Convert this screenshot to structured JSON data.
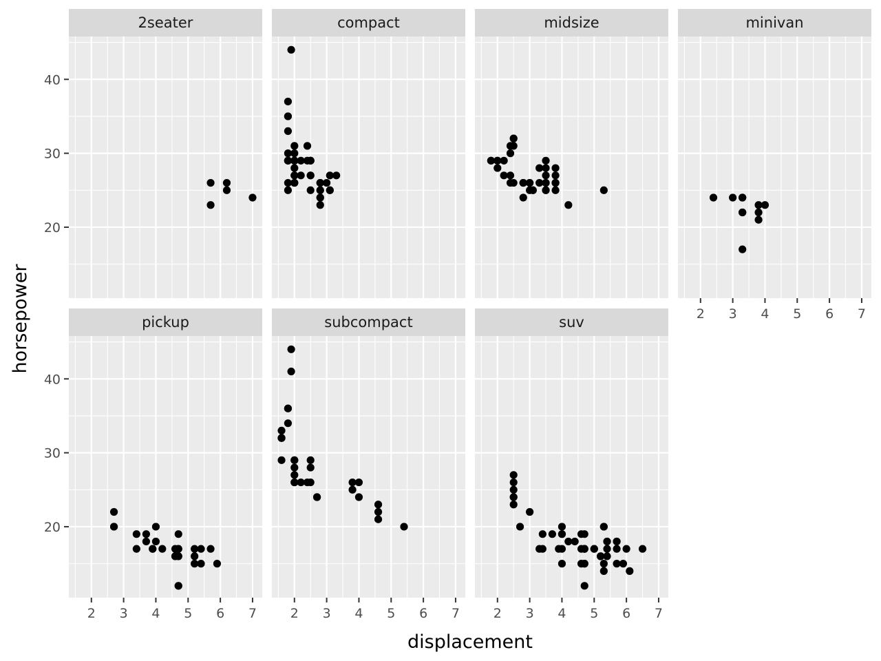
{
  "chart_data": {
    "type": "scatter",
    "facet_by": "class",
    "xlabel": "displacement",
    "ylabel": "horsepower",
    "xlim": [
      1.3,
      7.3
    ],
    "ylim": [
      10.4,
      45.8
    ],
    "x_ticks": [
      2,
      3,
      4,
      5,
      6,
      7
    ],
    "y_ticks": [
      20,
      30,
      40
    ],
    "grid": true,
    "point_color": "#000000",
    "panel_background": "#ebebeb",
    "strip_background": "#d9d9d9",
    "facets": [
      {
        "label": "2seater",
        "points": [
          [
            5.7,
            26
          ],
          [
            5.7,
            23
          ],
          [
            6.2,
            26
          ],
          [
            6.2,
            25
          ],
          [
            7.0,
            24
          ]
        ]
      },
      {
        "label": "compact",
        "points": [
          [
            1.8,
            29
          ],
          [
            1.8,
            29
          ],
          [
            2.0,
            31
          ],
          [
            2.0,
            30
          ],
          [
            2.8,
            26
          ],
          [
            2.8,
            26
          ],
          [
            3.1,
            27
          ],
          [
            1.8,
            26
          ],
          [
            1.8,
            25
          ],
          [
            2.0,
            28
          ],
          [
            2.0,
            27
          ],
          [
            2.8,
            25
          ],
          [
            2.8,
            25
          ],
          [
            3.1,
            25
          ],
          [
            3.1,
            25
          ],
          [
            2.2,
            27
          ],
          [
            2.2,
            29
          ],
          [
            2.4,
            31
          ],
          [
            2.4,
            29
          ],
          [
            3.0,
            26
          ],
          [
            2.0,
            29
          ],
          [
            2.0,
            29
          ],
          [
            2.0,
            27
          ],
          [
            2.0,
            26
          ],
          [
            2.5,
            27
          ],
          [
            2.5,
            25
          ],
          [
            2.5,
            29
          ],
          [
            2.5,
            29
          ],
          [
            2.8,
            24
          ],
          [
            2.8,
            23
          ],
          [
            1.9,
            44
          ],
          [
            2.0,
            29
          ],
          [
            2.0,
            26
          ],
          [
            2.0,
            29
          ],
          [
            2.0,
            29
          ],
          [
            2.5,
            29
          ],
          [
            2.5,
            27
          ],
          [
            2.8,
            24
          ],
          [
            3.3,
            27
          ],
          [
            1.8,
            33
          ],
          [
            1.8,
            35
          ],
          [
            1.8,
            37
          ],
          [
            1.8,
            35
          ],
          [
            1.8,
            29
          ],
          [
            2.0,
            26
          ],
          [
            1.8,
            30
          ]
        ]
      },
      {
        "label": "midsize",
        "points": [
          [
            2.8,
            24
          ],
          [
            3.1,
            25
          ],
          [
            4.2,
            23
          ],
          [
            2.4,
            27
          ],
          [
            2.4,
            30
          ],
          [
            3.3,
            26
          ],
          [
            3.5,
            29
          ],
          [
            3.5,
            26
          ],
          [
            3.8,
            26
          ],
          [
            3.8,
            25
          ],
          [
            5.3,
            25
          ],
          [
            1.8,
            29
          ],
          [
            1.8,
            29
          ],
          [
            2.0,
            28
          ],
          [
            2.0,
            29
          ],
          [
            2.8,
            26
          ],
          [
            2.8,
            26
          ],
          [
            3.1,
            25
          ],
          [
            2.4,
            26
          ],
          [
            2.5,
            26
          ],
          [
            3.5,
            25
          ],
          [
            2.0,
            29
          ],
          [
            2.2,
            29
          ],
          [
            2.2,
            27
          ],
          [
            3.0,
            26
          ],
          [
            3.5,
            25
          ],
          [
            2.5,
            31
          ],
          [
            2.5,
            32
          ],
          [
            3.0,
            26
          ],
          [
            3.3,
            28
          ],
          [
            3.5,
            28
          ],
          [
            3.8,
            27
          ],
          [
            3.8,
            26
          ],
          [
            3.8,
            28
          ],
          [
            3.5,
            27
          ],
          [
            2.4,
            31
          ],
          [
            2.5,
            32
          ],
          [
            2.8,
            26
          ],
          [
            3.0,
            25
          ],
          [
            3.5,
            26
          ],
          [
            3.8,
            26
          ]
        ]
      },
      {
        "label": "minivan",
        "points": [
          [
            2.4,
            24
          ],
          [
            3.0,
            24
          ],
          [
            3.3,
            22
          ],
          [
            3.3,
            22
          ],
          [
            3.3,
            24
          ],
          [
            3.3,
            24
          ],
          [
            3.3,
            17
          ],
          [
            3.8,
            22
          ],
          [
            3.8,
            21
          ],
          [
            3.8,
            23
          ],
          [
            4.0,
            23
          ]
        ]
      },
      {
        "label": "pickup",
        "points": [
          [
            2.7,
            20
          ],
          [
            2.7,
            20
          ],
          [
            2.7,
            22
          ],
          [
            3.4,
            17
          ],
          [
            3.4,
            19
          ],
          [
            3.7,
            18
          ],
          [
            3.7,
            19
          ],
          [
            3.9,
            17
          ],
          [
            3.9,
            17
          ],
          [
            4.0,
            20
          ],
          [
            4.0,
            18
          ],
          [
            4.2,
            17
          ],
          [
            4.7,
            17
          ],
          [
            4.7,
            12
          ],
          [
            4.7,
            16
          ],
          [
            4.7,
            19
          ],
          [
            4.7,
            16
          ],
          [
            4.7,
            17
          ],
          [
            4.7,
            12
          ],
          [
            5.2,
            17
          ],
          [
            5.2,
            15
          ],
          [
            5.2,
            16
          ],
          [
            5.4,
            17
          ],
          [
            5.4,
            15
          ],
          [
            5.7,
            17
          ],
          [
            5.9,
            15
          ],
          [
            4.6,
            16
          ],
          [
            4.6,
            17
          ],
          [
            4.6,
            16
          ]
        ]
      },
      {
        "label": "subcompact",
        "points": [
          [
            1.6,
            33
          ],
          [
            1.6,
            32
          ],
          [
            1.6,
            32
          ],
          [
            1.6,
            29
          ],
          [
            1.6,
            32
          ],
          [
            1.8,
            34
          ],
          [
            1.8,
            36
          ],
          [
            1.8,
            36
          ],
          [
            2.0,
            29
          ],
          [
            2.0,
            26
          ],
          [
            2.0,
            27
          ],
          [
            2.0,
            28
          ],
          [
            2.0,
            26
          ],
          [
            2.0,
            29
          ],
          [
            2.4,
            26
          ],
          [
            2.5,
            26
          ],
          [
            2.5,
            28
          ],
          [
            2.5,
            29
          ],
          [
            2.7,
            24
          ],
          [
            2.7,
            24
          ],
          [
            3.8,
            26
          ],
          [
            3.8,
            25
          ],
          [
            4.0,
            26
          ],
          [
            4.0,
            24
          ],
          [
            4.6,
            21
          ],
          [
            4.6,
            22
          ],
          [
            4.6,
            23
          ],
          [
            5.4,
            20
          ],
          [
            1.9,
            44
          ],
          [
            1.9,
            41
          ],
          [
            2.2,
            26
          ]
        ]
      },
      {
        "label": "suv",
        "points": [
          [
            5.3,
            20
          ],
          [
            5.3,
            15
          ],
          [
            5.3,
            20
          ],
          [
            5.7,
            17
          ],
          [
            6.0,
            17
          ],
          [
            5.7,
            18
          ],
          [
            6.5,
            17
          ],
          [
            4.7,
            17
          ],
          [
            4.7,
            15
          ],
          [
            5.2,
            16
          ],
          [
            5.7,
            15
          ],
          [
            5.9,
            15
          ],
          [
            4.7,
            17
          ],
          [
            4.7,
            17
          ],
          [
            4.7,
            19
          ],
          [
            5.7,
            18
          ],
          [
            6.1,
            14
          ],
          [
            4.0,
            19
          ],
          [
            4.2,
            18
          ],
          [
            4.4,
            18
          ],
          [
            4.6,
            17
          ],
          [
            5.4,
            17
          ],
          [
            5.4,
            18
          ],
          [
            4.0,
            17
          ],
          [
            4.0,
            20
          ],
          [
            4.6,
            19
          ],
          [
            5.0,
            17
          ],
          [
            4.7,
            12
          ],
          [
            5.0,
            17
          ],
          [
            5.3,
            14
          ],
          [
            5.4,
            16
          ],
          [
            2.5,
            25
          ],
          [
            2.5,
            23
          ],
          [
            2.5,
            24
          ],
          [
            2.5,
            26
          ],
          [
            2.5,
            27
          ],
          [
            2.7,
            20
          ],
          [
            3.0,
            22
          ],
          [
            3.3,
            17
          ],
          [
            3.4,
            17
          ],
          [
            3.4,
            19
          ],
          [
            3.7,
            19
          ],
          [
            4.0,
            15
          ],
          [
            4.6,
            15
          ],
          [
            4.7,
            15
          ],
          [
            5.2,
            16
          ],
          [
            3.9,
            17
          ],
          [
            4.0,
            19
          ],
          [
            5.4,
            18
          ],
          [
            2.5,
            24
          ]
        ]
      }
    ]
  }
}
